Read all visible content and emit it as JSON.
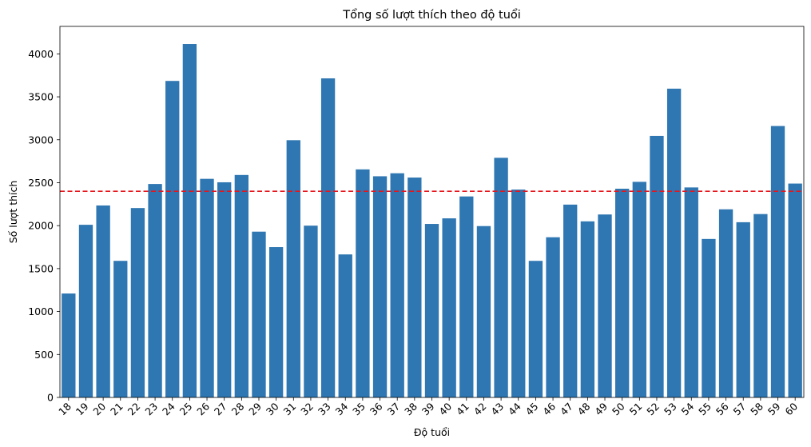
{
  "chart_data": {
    "type": "bar",
    "title": "Tổng số lượt thích theo độ tuổi",
    "xlabel": "Độ tuổi",
    "ylabel": "Số lượt thích",
    "categories": [
      "18",
      "19",
      "20",
      "21",
      "22",
      "23",
      "24",
      "25",
      "26",
      "27",
      "28",
      "29",
      "30",
      "31",
      "32",
      "33",
      "34",
      "35",
      "36",
      "37",
      "38",
      "39",
      "40",
      "41",
      "42",
      "43",
      "44",
      "45",
      "46",
      "47",
      "48",
      "49",
      "50",
      "51",
      "52",
      "53",
      "54",
      "55",
      "56",
      "57",
      "58",
      "59",
      "60"
    ],
    "values": [
      1210,
      2010,
      2235,
      1590,
      2205,
      2485,
      3685,
      4115,
      2545,
      2505,
      2590,
      1930,
      1750,
      2995,
      2000,
      3715,
      1665,
      2655,
      2575,
      2610,
      2560,
      2020,
      2085,
      2340,
      1995,
      2790,
      2420,
      1590,
      1865,
      2245,
      2050,
      2130,
      2430,
      2510,
      3045,
      3595,
      2445,
      1845,
      2190,
      2040,
      2135,
      3160,
      2490
    ],
    "ylim": [
      0,
      4320
    ],
    "yticks": [
      0,
      500,
      1000,
      1500,
      2000,
      2500,
      3000,
      3500,
      4000
    ],
    "reference_line": {
      "value": 2400,
      "style": "dashed",
      "color": "#e8141b"
    },
    "bar_color": "#2f77b2",
    "grid": false,
    "legend": "none"
  }
}
